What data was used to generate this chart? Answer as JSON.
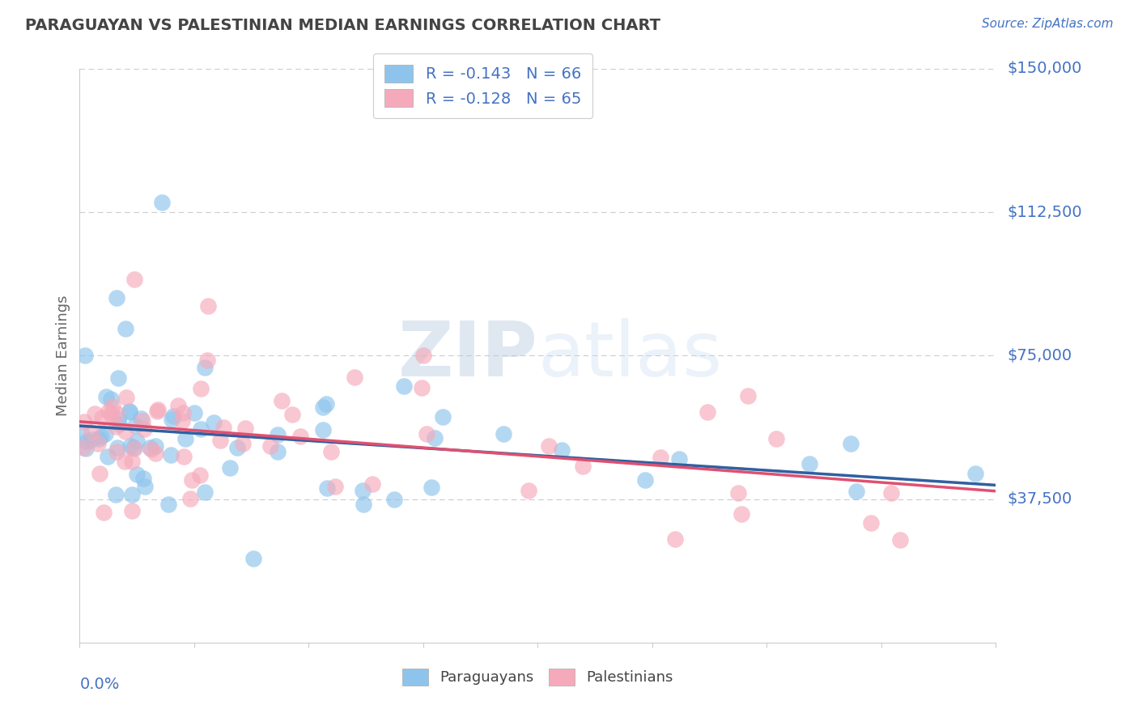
{
  "title": "PARAGUAYAN VS PALESTINIAN MEDIAN EARNINGS CORRELATION CHART",
  "source_text": "Source: ZipAtlas.com",
  "ylabel": "Median Earnings",
  "yticks": [
    0,
    37500,
    75000,
    112500,
    150000
  ],
  "ytick_labels": [
    "",
    "$37,500",
    "$75,000",
    "$112,500",
    "$150,000"
  ],
  "xlim": [
    0.0,
    0.2
  ],
  "ylim": [
    0,
    150000
  ],
  "legend_paraguayan": "R = -0.143   N = 66",
  "legend_palestinian": "R = -0.128   N = 65",
  "paraguayan_color": "#8EC4EC",
  "palestinian_color": "#F5AABB",
  "trendline_paraguayan_solid_color": "#3060A0",
  "trendline_paraguayan_dashed_color": "#7EB6E8",
  "trendline_palestinian_color": "#E05070",
  "watermark_zip_color": "#C8D8E8",
  "watermark_atlas_color": "#D8E8F0",
  "title_color": "#444444",
  "source_color": "#4472C4",
  "axis_label_color": "#4472C4",
  "ylabel_color": "#666666",
  "legend_text_color": "#4472C4",
  "bottom_legend_text_color": "#444444",
  "grid_color": "#cccccc",
  "spine_color": "#cccccc"
}
